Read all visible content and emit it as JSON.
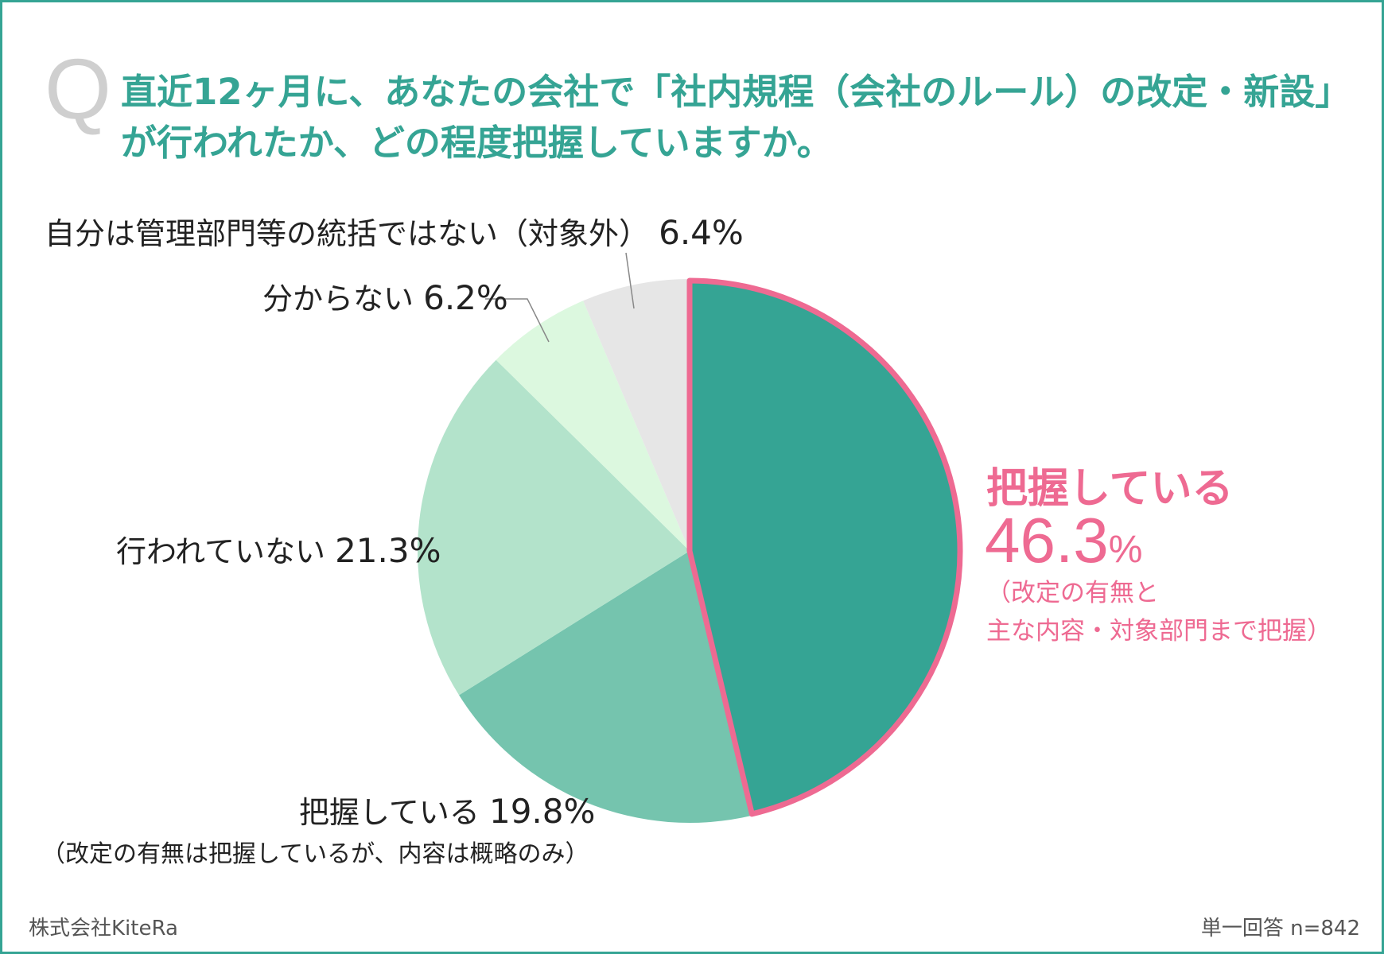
{
  "question": {
    "mark": "Q",
    "line1": "直近12ヶ月に、あなたの会社で「社内規程（会社のルール）の改定・新設」",
    "line2": "が行われたか、どの程度把握していますか。"
  },
  "chart_data": {
    "type": "pie",
    "slices": [
      {
        "label": "把握している",
        "value": 46.3,
        "display": "46.3",
        "unit": "%",
        "note": [
          "（改定の有無と",
          "主な内容・対象部門まで把握）"
        ],
        "color": "#35a494",
        "highlight": true
      },
      {
        "label": "把握している",
        "value": 19.8,
        "display": "19.8%",
        "note": [
          "（改定の有無は把握しているが、内容は概略のみ）"
        ],
        "color": "#75c4ae"
      },
      {
        "label": "行われていない",
        "value": 21.3,
        "display": "21.3%",
        "color": "#b3e3cb"
      },
      {
        "label": "分からない",
        "value": 6.2,
        "display": "6.2%",
        "color": "#dcf8df"
      },
      {
        "label": "自分は管理部門等の統括ではない（対象外）",
        "value": 6.4,
        "display": "6.4%",
        "color": "#e6e6e6"
      }
    ],
    "highlight_color": "#ee6a92"
  },
  "footer": {
    "company": "株式会社KiteRa",
    "note": "単一回答 n=842"
  }
}
